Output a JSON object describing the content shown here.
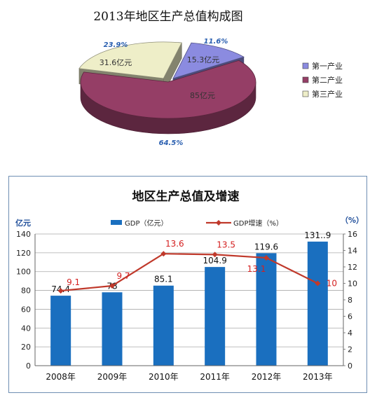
{
  "chart_data": [
    {
      "type": "pie",
      "title": "2013年地区生产总值构成图",
      "slices": [
        {
          "name": "第一产业",
          "value": 15.3,
          "value_label": "15.3亿元",
          "percent_label": "11.6%",
          "color": "#8B8BE0"
        },
        {
          "name": "第二产业",
          "value": 85,
          "value_label": "85亿元",
          "percent_label": "64.5%",
          "color": "#953E66"
        },
        {
          "name": "第三产业",
          "value": 31.6,
          "value_label": "31.6亿元",
          "percent_label": "23.9%",
          "color": "#EEEEC8"
        }
      ],
      "legend": "right"
    },
    {
      "type": "bar+line",
      "title": "地区生产总值及增速",
      "categories": [
        "2008年",
        "2009年",
        "2010年",
        "2011年",
        "2012年",
        "2013年"
      ],
      "series": [
        {
          "name": "GDP（亿元）",
          "type": "bar",
          "axis": "left",
          "color": "#1A6FBF",
          "values": [
            74.4,
            78,
            85.1,
            104.9,
            119.6,
            131.9
          ],
          "labels": [
            "74.4",
            "78",
            "85.1",
            "104.9",
            "119.6",
            "131..9"
          ]
        },
        {
          "name": "GDP增速（%）",
          "type": "line",
          "axis": "right",
          "color": "#C0392B",
          "values": [
            9.1,
            9.7,
            13.6,
            13.5,
            13.1,
            10
          ],
          "labels": [
            "9.1",
            "9.7",
            "13.6",
            "13.5",
            "13.1",
            "10"
          ]
        }
      ],
      "ylabel_left": "亿元",
      "ylabel_right": "（%）",
      "ylim_left": [
        0,
        140
      ],
      "ylim_right": [
        0,
        16
      ],
      "yticks_left": [
        0,
        20,
        40,
        60,
        80,
        100,
        120,
        140
      ],
      "yticks_right": [
        0,
        2,
        4,
        6,
        8,
        10,
        12,
        14,
        16
      ],
      "grid": true,
      "legend": "top"
    }
  ]
}
